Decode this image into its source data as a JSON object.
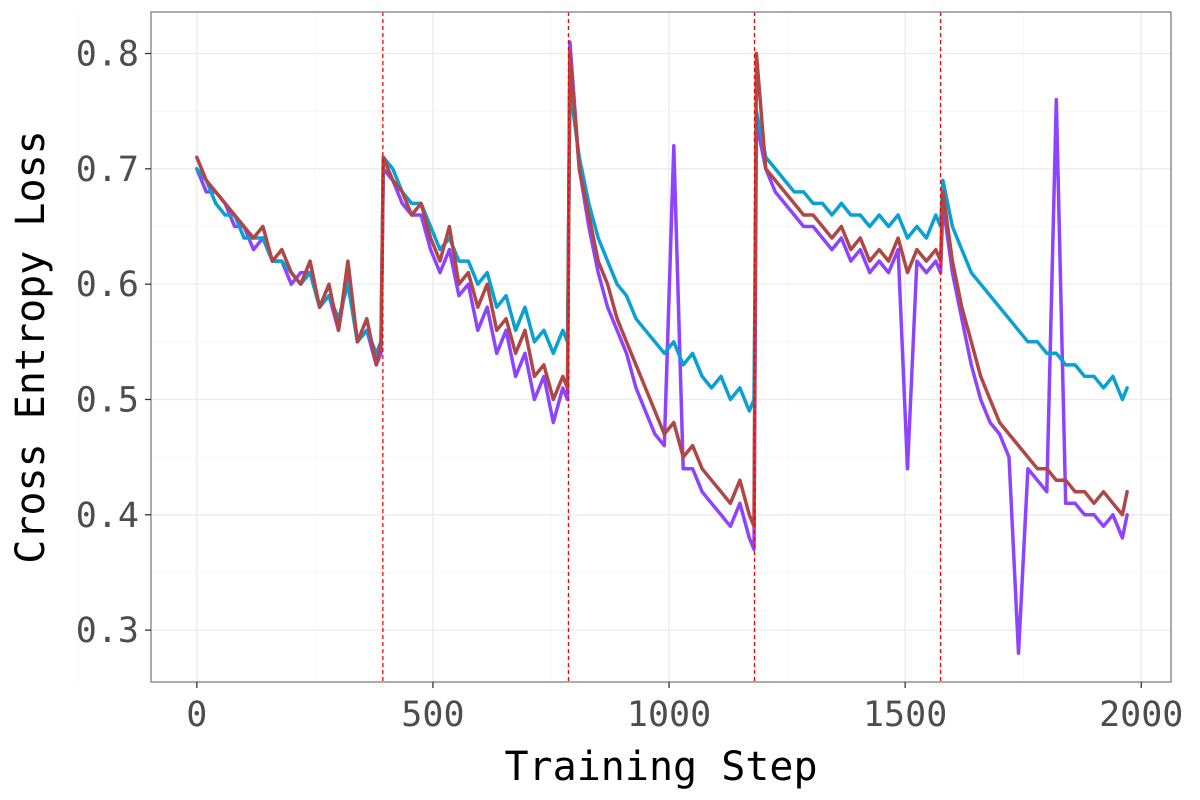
{
  "chart_data": {
    "type": "line",
    "title": "",
    "xlabel": "Training Step",
    "ylabel": "Cross Entropy Loss",
    "xlim": [
      -97,
      2063
    ],
    "ylim": [
      0.255,
      0.836
    ],
    "xticks": [
      0,
      500,
      1000,
      1500,
      2000
    ],
    "xtick_labels": [
      "0",
      "500",
      "1000",
      "1500",
      "2000"
    ],
    "yticks": [
      0.3,
      0.4,
      0.5,
      0.6,
      0.7,
      0.8
    ],
    "ytick_labels": [
      "0.3",
      "0.4",
      "0.5",
      "0.6",
      "0.7",
      "0.8"
    ],
    "grid": true,
    "legend": "none",
    "vlines": [
      394,
      787,
      1181,
      1575
    ],
    "vline_color": "#ff0000",
    "x": [
      0,
      20,
      40,
      60,
      80,
      100,
      120,
      140,
      160,
      180,
      200,
      220,
      240,
      260,
      280,
      300,
      320,
      340,
      360,
      380,
      390,
      395,
      415,
      435,
      455,
      475,
      495,
      515,
      535,
      555,
      575,
      595,
      615,
      635,
      655,
      675,
      695,
      715,
      735,
      755,
      775,
      785,
      790,
      810,
      830,
      850,
      870,
      890,
      910,
      930,
      950,
      970,
      990,
      1010,
      1030,
      1050,
      1070,
      1090,
      1110,
      1130,
      1150,
      1170,
      1180,
      1185,
      1205,
      1225,
      1245,
      1265,
      1285,
      1305,
      1325,
      1345,
      1365,
      1385,
      1405,
      1425,
      1445,
      1465,
      1485,
      1505,
      1525,
      1545,
      1565,
      1575,
      1580,
      1600,
      1620,
      1640,
      1660,
      1680,
      1700,
      1720,
      1740,
      1760,
      1780,
      1800,
      1820,
      1840,
      1860,
      1880,
      1900,
      1920,
      1940,
      1960,
      1970
    ],
    "series": [
      {
        "color": "#8e44ff",
        "values": [
          0.7,
          0.68,
          0.68,
          0.67,
          0.65,
          0.65,
          0.63,
          0.64,
          0.62,
          0.62,
          0.6,
          0.61,
          0.61,
          0.58,
          0.59,
          0.56,
          0.61,
          0.55,
          0.56,
          0.53,
          0.54,
          0.7,
          0.69,
          0.67,
          0.66,
          0.66,
          0.63,
          0.61,
          0.63,
          0.59,
          0.6,
          0.56,
          0.58,
          0.54,
          0.56,
          0.52,
          0.54,
          0.5,
          0.52,
          0.48,
          0.51,
          0.5,
          0.81,
          0.7,
          0.65,
          0.61,
          0.58,
          0.56,
          0.54,
          0.51,
          0.49,
          0.47,
          0.46,
          0.72,
          0.44,
          0.44,
          0.42,
          0.41,
          0.4,
          0.39,
          0.41,
          0.38,
          0.37,
          0.74,
          0.7,
          0.68,
          0.67,
          0.66,
          0.65,
          0.65,
          0.64,
          0.63,
          0.64,
          0.62,
          0.63,
          0.61,
          0.62,
          0.61,
          0.63,
          0.44,
          0.62,
          0.61,
          0.62,
          0.61,
          0.67,
          0.61,
          0.57,
          0.53,
          0.5,
          0.48,
          0.47,
          0.45,
          0.28,
          0.44,
          0.43,
          0.42,
          0.76,
          0.41,
          0.41,
          0.4,
          0.4,
          0.39,
          0.4,
          0.38,
          0.4
        ]
      },
      {
        "color": "#0ba0d4",
        "values": [
          0.7,
          0.69,
          0.67,
          0.66,
          0.66,
          0.64,
          0.64,
          0.64,
          0.62,
          0.62,
          0.61,
          0.6,
          0.61,
          0.58,
          0.59,
          0.57,
          0.6,
          0.55,
          0.56,
          0.54,
          0.55,
          0.71,
          0.7,
          0.68,
          0.67,
          0.67,
          0.65,
          0.63,
          0.64,
          0.62,
          0.62,
          0.6,
          0.61,
          0.58,
          0.59,
          0.56,
          0.58,
          0.55,
          0.56,
          0.54,
          0.56,
          0.55,
          0.77,
          0.71,
          0.67,
          0.64,
          0.62,
          0.6,
          0.59,
          0.57,
          0.56,
          0.55,
          0.54,
          0.55,
          0.53,
          0.54,
          0.52,
          0.51,
          0.52,
          0.5,
          0.51,
          0.49,
          0.5,
          0.75,
          0.71,
          0.7,
          0.69,
          0.68,
          0.68,
          0.67,
          0.67,
          0.66,
          0.67,
          0.66,
          0.66,
          0.65,
          0.66,
          0.65,
          0.66,
          0.64,
          0.65,
          0.64,
          0.66,
          0.65,
          0.69,
          0.65,
          0.63,
          0.61,
          0.6,
          0.59,
          0.58,
          0.57,
          0.56,
          0.55,
          0.55,
          0.54,
          0.54,
          0.53,
          0.53,
          0.52,
          0.52,
          0.51,
          0.52,
          0.5,
          0.51
        ]
      },
      {
        "color": "#b04747",
        "values": [
          0.71,
          0.69,
          0.68,
          0.67,
          0.66,
          0.65,
          0.64,
          0.65,
          0.62,
          0.63,
          0.61,
          0.6,
          0.62,
          0.58,
          0.6,
          0.56,
          0.62,
          0.55,
          0.57,
          0.53,
          0.55,
          0.71,
          0.69,
          0.68,
          0.66,
          0.67,
          0.64,
          0.62,
          0.65,
          0.6,
          0.61,
          0.58,
          0.6,
          0.56,
          0.57,
          0.54,
          0.56,
          0.52,
          0.53,
          0.5,
          0.52,
          0.51,
          0.8,
          0.7,
          0.66,
          0.62,
          0.6,
          0.57,
          0.55,
          0.53,
          0.51,
          0.49,
          0.47,
          0.48,
          0.45,
          0.46,
          0.44,
          0.43,
          0.42,
          0.41,
          0.43,
          0.4,
          0.39,
          0.8,
          0.7,
          0.69,
          0.68,
          0.67,
          0.66,
          0.66,
          0.65,
          0.64,
          0.65,
          0.63,
          0.64,
          0.62,
          0.63,
          0.62,
          0.64,
          0.61,
          0.63,
          0.62,
          0.63,
          0.62,
          0.68,
          0.62,
          0.58,
          0.55,
          0.52,
          0.5,
          0.48,
          0.47,
          0.46,
          0.45,
          0.44,
          0.44,
          0.43,
          0.43,
          0.42,
          0.42,
          0.41,
          0.42,
          0.41,
          0.4,
          0.42
        ]
      }
    ]
  }
}
